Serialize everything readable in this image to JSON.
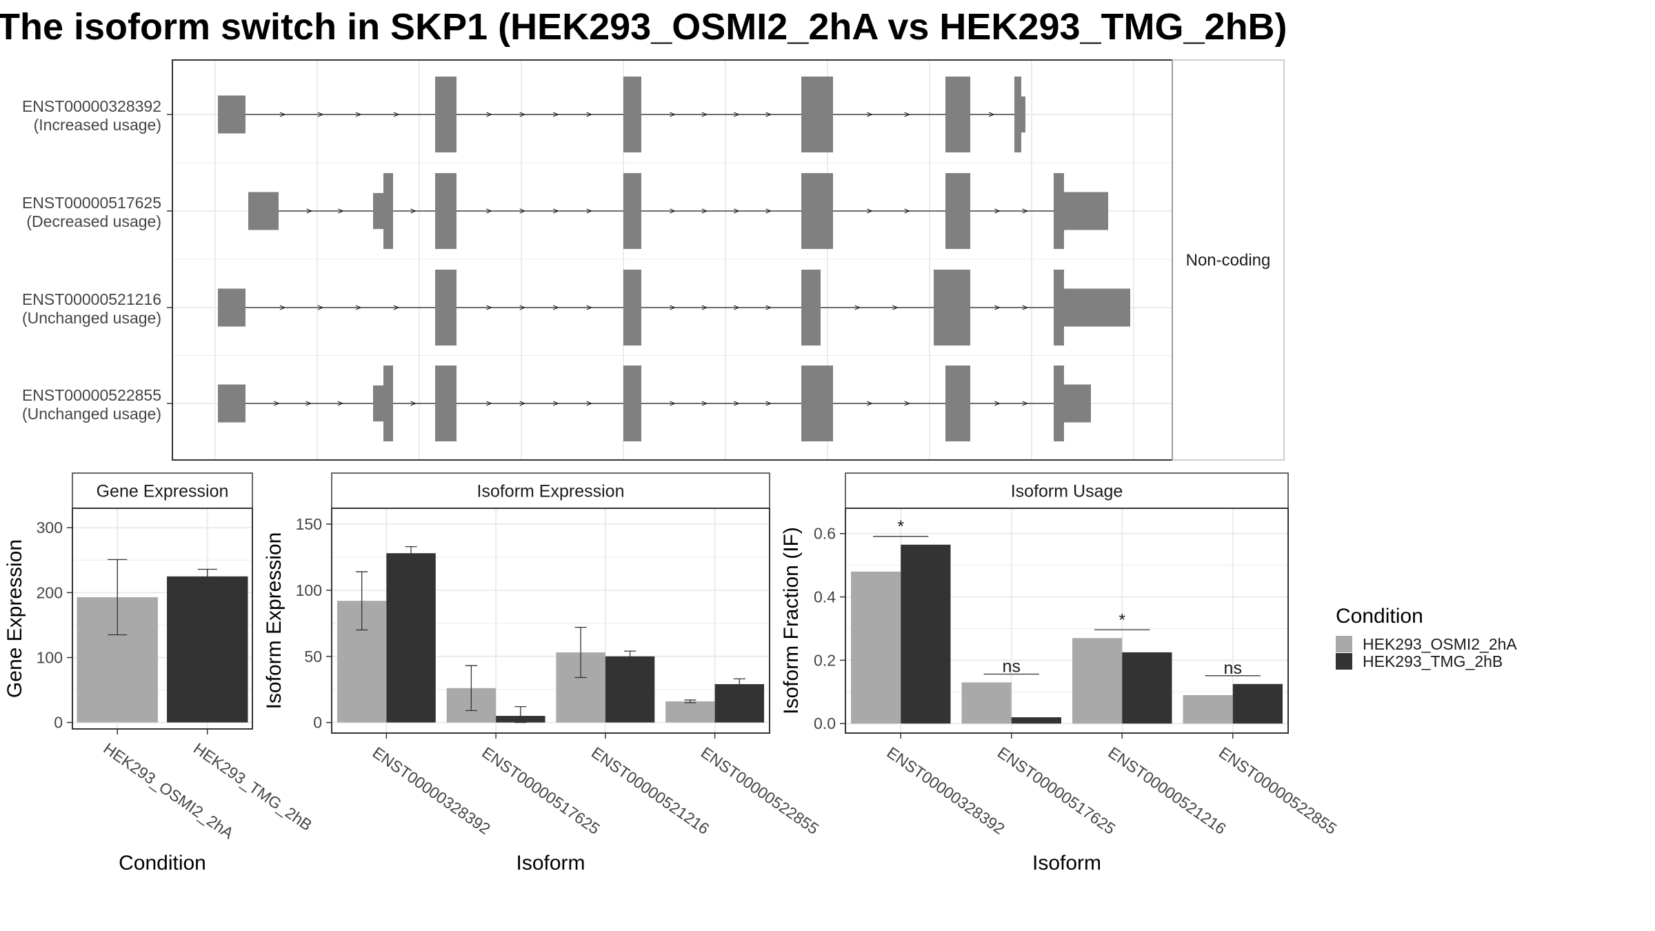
{
  "title": "The isoform switch in SKP1 (HEK293_OSMI2_2hA vs HEK293_TMG_2hB)",
  "colors": {
    "condA": "#a9a9a9",
    "condB": "#333333",
    "exon": "#808080",
    "grid": "#ebebeb",
    "frame": "#333333"
  },
  "chart_data": [
    {
      "type": "gene-structure",
      "coding_label": "Non-coding",
      "transcripts": [
        {
          "id": "ENST00000328392",
          "usage": "(Increased usage)"
        },
        {
          "id": "ENST00000517625",
          "usage": "(Decreased usage)"
        },
        {
          "id": "ENST00000521216",
          "usage": "(Unchanged usage)"
        },
        {
          "id": "ENST00000522855",
          "usage": "(Unchanged usage)"
        }
      ]
    },
    {
      "type": "bar",
      "title": "Gene Expression",
      "xlabel": "Condition",
      "ylabel": "Gene Expression",
      "ylim": [
        -10,
        330
      ],
      "yticks": [
        "0",
        "100",
        "200",
        "300"
      ],
      "categories": [
        "HEK293_OSMI2_2hA",
        "HEK293_TMG_2hB"
      ],
      "values": [
        193,
        225
      ],
      "errors": [
        [
          135,
          251
        ],
        [
          214,
          236
        ]
      ]
    },
    {
      "type": "bar",
      "title": "Isoform Expression",
      "xlabel": "Isoform",
      "ylabel": "Isoform Expression",
      "ylim": [
        -8,
        162
      ],
      "yticks": [
        "0",
        "50",
        "100",
        "150"
      ],
      "categories": [
        "ENST00000328392",
        "ENST00000517625",
        "ENST00000521216",
        "ENST00000522855"
      ],
      "series": [
        {
          "name": "HEK293_OSMI2_2hA",
          "values": [
            92,
            26,
            53,
            16
          ],
          "errors": [
            [
              70,
              114
            ],
            [
              9,
              43
            ],
            [
              34,
              72
            ],
            [
              15,
              17
            ]
          ]
        },
        {
          "name": "HEK293_TMG_2hB",
          "values": [
            128,
            5,
            50,
            29
          ],
          "errors": [
            [
              123,
              133
            ],
            [
              0,
              12
            ],
            [
              46,
              54
            ],
            [
              25,
              33
            ]
          ]
        }
      ]
    },
    {
      "type": "bar",
      "title": "Isoform Usage",
      "xlabel": "Isoform",
      "ylabel": "Isoform Fraction (IF)",
      "ylim": [
        -0.03,
        0.68
      ],
      "yticks": [
        "0.0",
        "0.2",
        "0.4",
        "0.6"
      ],
      "categories": [
        "ENST00000328392",
        "ENST00000517625",
        "ENST00000521216",
        "ENST00000522855"
      ],
      "series": [
        {
          "name": "HEK293_OSMI2_2hA",
          "values": [
            0.48,
            0.13,
            0.27,
            0.09
          ]
        },
        {
          "name": "HEK293_TMG_2hB",
          "values": [
            0.565,
            0.02,
            0.225,
            0.125
          ]
        }
      ],
      "significance": [
        "*",
        "ns",
        "*",
        "ns"
      ]
    }
  ],
  "legend": {
    "title": "Condition",
    "items": [
      {
        "label": "HEK293_OSMI2_2hA",
        "color": "#a9a9a9"
      },
      {
        "label": "HEK293_TMG_2hB",
        "color": "#333333"
      }
    ]
  }
}
